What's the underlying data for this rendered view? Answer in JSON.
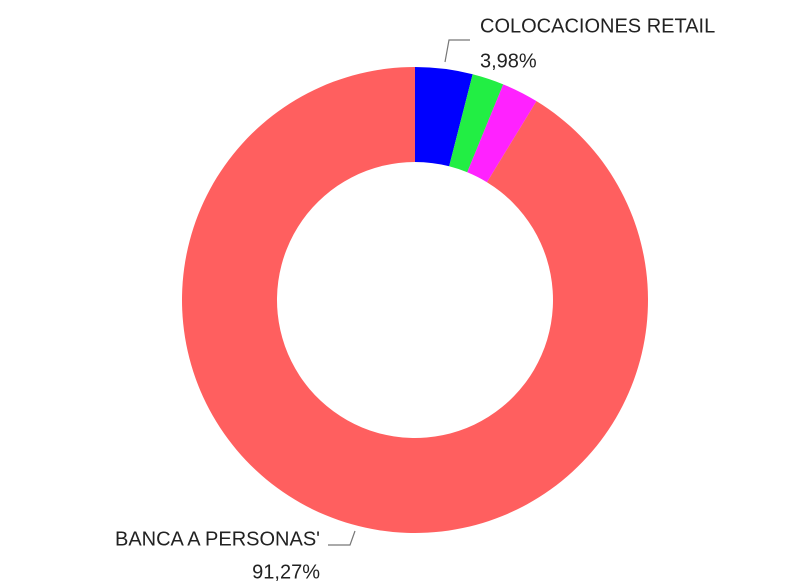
{
  "chart_data": {
    "type": "pie",
    "categories": [
      "COLOCACIONES RETAIL",
      null,
      null,
      "BANCA A PERSONAS'"
    ],
    "values": [
      3.98,
      2.2,
      2.55,
      91.27
    ],
    "value_labels": [
      "3,98%",
      null,
      null,
      "91,27%"
    ],
    "colors": [
      "#0000ff",
      "#22ee44",
      "#ff22ff",
      "#ff5f5f"
    ]
  }
}
